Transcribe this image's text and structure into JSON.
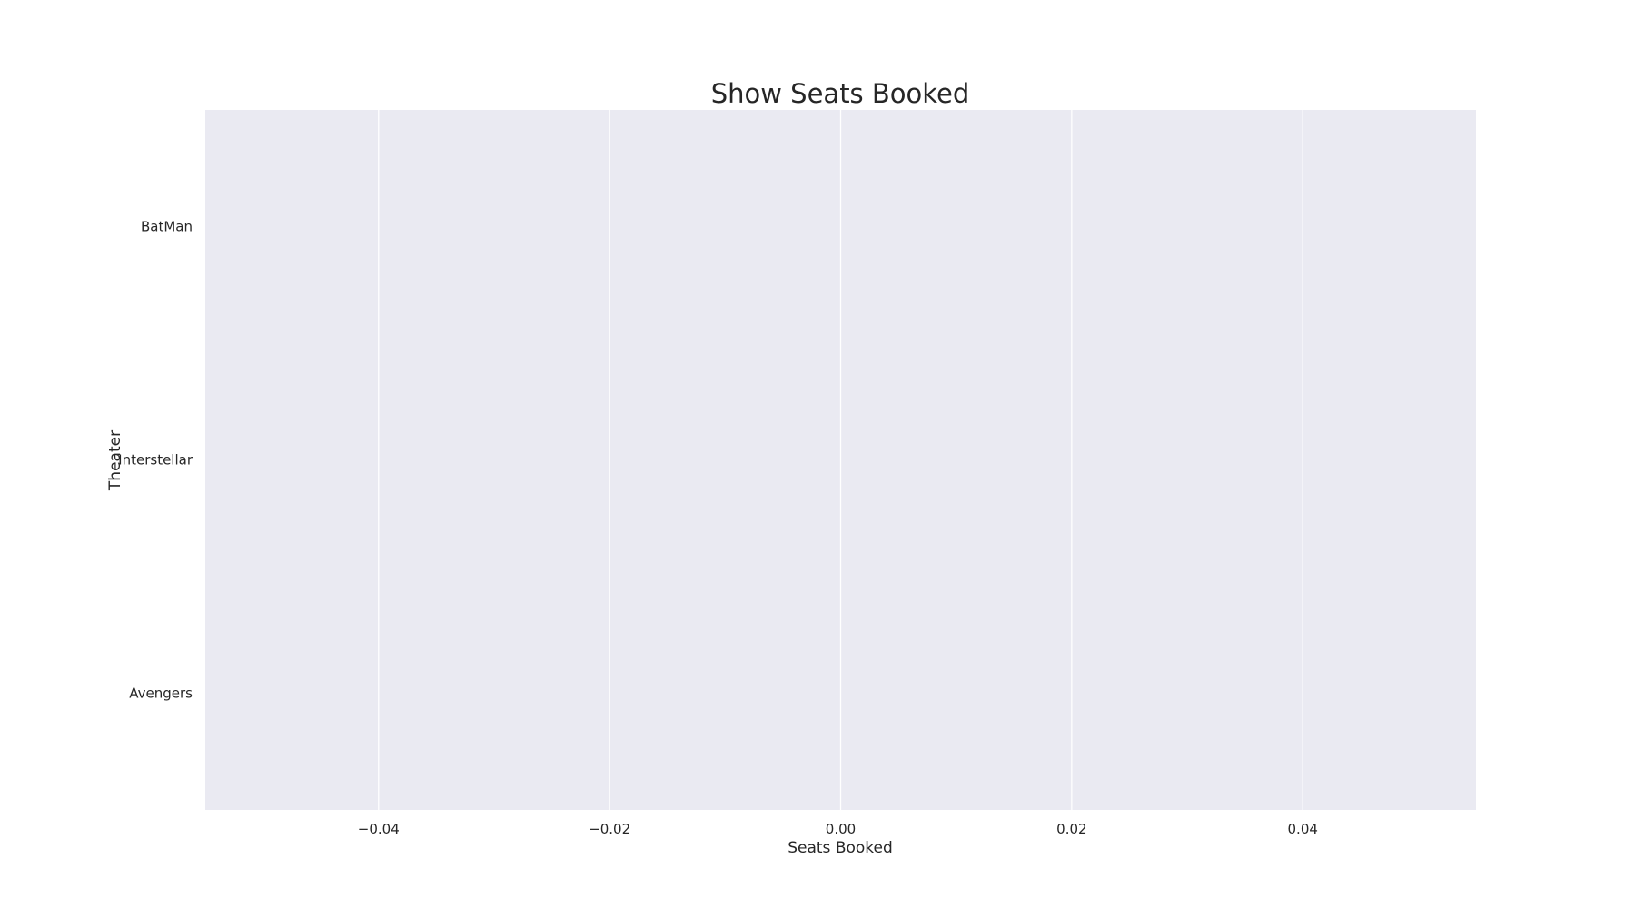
{
  "chart_data": {
    "type": "bar",
    "orientation": "horizontal",
    "title": "Show Seats Booked",
    "xlabel": "Seats Booked",
    "ylabel": "Theater",
    "categories": [
      "BatMan",
      "Interstellar",
      "Avengers"
    ],
    "values": [
      0,
      0,
      0
    ],
    "xlim": [
      -0.055,
      0.055
    ],
    "xticks": [
      -0.04,
      -0.02,
      0.0,
      0.02,
      0.04
    ],
    "xtick_labels": [
      "−0.04",
      "−0.02",
      "0.00",
      "0.02",
      "0.04"
    ],
    "grid": true,
    "grid_axis": "x",
    "legend": "none",
    "plot_background": "#eaeaf2",
    "grid_color": "#ffffff",
    "bar_color": "#4c72b0"
  }
}
